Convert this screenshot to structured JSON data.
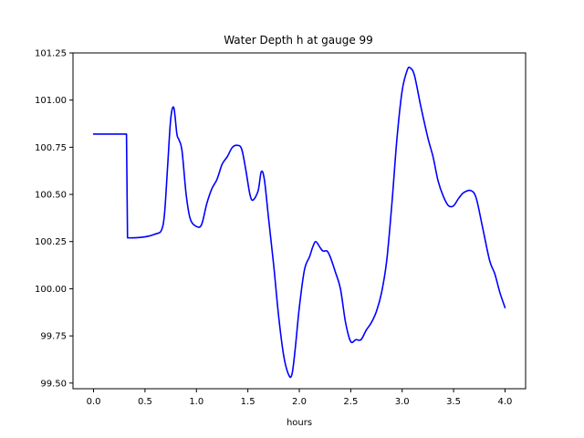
{
  "chart_data": {
    "type": "line",
    "title": "Water Depth h at gauge 99",
    "xlabel": "hours",
    "ylabel": "",
    "xlim": [
      -0.2,
      4.2
    ],
    "ylim": [
      99.47,
      101.25
    ],
    "xticks": [
      0.0,
      0.5,
      1.0,
      1.5,
      2.0,
      2.5,
      3.0,
      3.5,
      4.0
    ],
    "xtick_labels": [
      "0.0",
      "0.5",
      "1.0",
      "1.5",
      "2.0",
      "2.5",
      "3.0",
      "3.5",
      "4.0"
    ],
    "yticks": [
      99.5,
      99.75,
      100.0,
      100.25,
      100.5,
      100.75,
      101.0,
      101.25
    ],
    "ytick_labels": [
      "99.50",
      "99.75",
      "100.00",
      "100.25",
      "100.50",
      "100.75",
      "101.00",
      "101.25"
    ],
    "grid": false,
    "series": [
      {
        "color": "#0000ff",
        "points": [
          [
            0.0,
            100.82
          ],
          [
            0.1,
            100.82
          ],
          [
            0.2,
            100.82
          ],
          [
            0.32,
            100.82
          ],
          [
            0.33,
            100.27
          ],
          [
            0.4,
            100.27
          ],
          [
            0.5,
            100.275
          ],
          [
            0.6,
            100.29
          ],
          [
            0.66,
            100.31
          ],
          [
            0.69,
            100.4
          ],
          [
            0.72,
            100.65
          ],
          [
            0.75,
            100.9
          ],
          [
            0.78,
            100.96
          ],
          [
            0.81,
            100.82
          ],
          [
            0.83,
            100.79
          ],
          [
            0.86,
            100.73
          ],
          [
            0.9,
            100.5
          ],
          [
            0.94,
            100.37
          ],
          [
            1.0,
            100.33
          ],
          [
            1.05,
            100.34
          ],
          [
            1.1,
            100.45
          ],
          [
            1.15,
            100.53
          ],
          [
            1.2,
            100.58
          ],
          [
            1.25,
            100.66
          ],
          [
            1.3,
            100.7
          ],
          [
            1.35,
            100.75
          ],
          [
            1.4,
            100.76
          ],
          [
            1.44,
            100.74
          ],
          [
            1.48,
            100.63
          ],
          [
            1.52,
            100.5
          ],
          [
            1.55,
            100.47
          ],
          [
            1.6,
            100.52
          ],
          [
            1.63,
            100.62
          ],
          [
            1.66,
            100.58
          ],
          [
            1.7,
            100.38
          ],
          [
            1.75,
            100.13
          ],
          [
            1.8,
            99.85
          ],
          [
            1.85,
            99.64
          ],
          [
            1.9,
            99.54
          ],
          [
            1.93,
            99.55
          ],
          [
            1.96,
            99.68
          ],
          [
            2.0,
            99.9
          ],
          [
            2.05,
            100.1
          ],
          [
            2.1,
            100.17
          ],
          [
            2.13,
            100.22
          ],
          [
            2.16,
            100.25
          ],
          [
            2.2,
            100.22
          ],
          [
            2.23,
            100.2
          ],
          [
            2.27,
            100.2
          ],
          [
            2.3,
            100.17
          ],
          [
            2.35,
            100.09
          ],
          [
            2.4,
            100.0
          ],
          [
            2.45,
            99.82
          ],
          [
            2.5,
            99.72
          ],
          [
            2.55,
            99.73
          ],
          [
            2.6,
            99.73
          ],
          [
            2.65,
            99.78
          ],
          [
            2.7,
            99.82
          ],
          [
            2.75,
            99.88
          ],
          [
            2.8,
            99.98
          ],
          [
            2.85,
            100.15
          ],
          [
            2.9,
            100.45
          ],
          [
            2.95,
            100.8
          ],
          [
            3.0,
            101.05
          ],
          [
            3.05,
            101.16
          ],
          [
            3.08,
            101.17
          ],
          [
            3.12,
            101.13
          ],
          [
            3.18,
            100.97
          ],
          [
            3.25,
            100.8
          ],
          [
            3.3,
            100.7
          ],
          [
            3.35,
            100.57
          ],
          [
            3.4,
            100.49
          ],
          [
            3.45,
            100.44
          ],
          [
            3.5,
            100.44
          ],
          [
            3.55,
            100.48
          ],
          [
            3.6,
            100.51
          ],
          [
            3.67,
            100.52
          ],
          [
            3.72,
            100.48
          ],
          [
            3.78,
            100.33
          ],
          [
            3.85,
            100.15
          ],
          [
            3.9,
            100.08
          ],
          [
            3.95,
            99.98
          ],
          [
            4.0,
            99.9
          ]
        ]
      }
    ]
  }
}
